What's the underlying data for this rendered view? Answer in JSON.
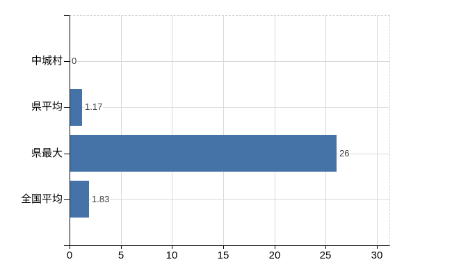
{
  "chart_data": {
    "type": "bar",
    "orientation": "horizontal",
    "title": "",
    "categories": [
      "中城村",
      "県平均",
      "県最大",
      "全国平均"
    ],
    "values": [
      0,
      1.17,
      26,
      1.83
    ],
    "value_labels": [
      "0",
      "1.17",
      "26",
      "1.83"
    ],
    "x_tick_labels": [
      "0",
      "5",
      "10",
      "15",
      "20",
      "25",
      "30"
    ],
    "x_tick_values": [
      0,
      5,
      10,
      15,
      20,
      25,
      30
    ],
    "xlim": [
      0,
      31.2
    ],
    "grid": true,
    "legend_position": "none",
    "colors": {
      "bar": "#4573a8",
      "gridline": "#d9d9d9",
      "axis": "#000000",
      "value_label": "#3c3c3c",
      "tick_label": "#000000",
      "background": "#ffffff"
    }
  }
}
